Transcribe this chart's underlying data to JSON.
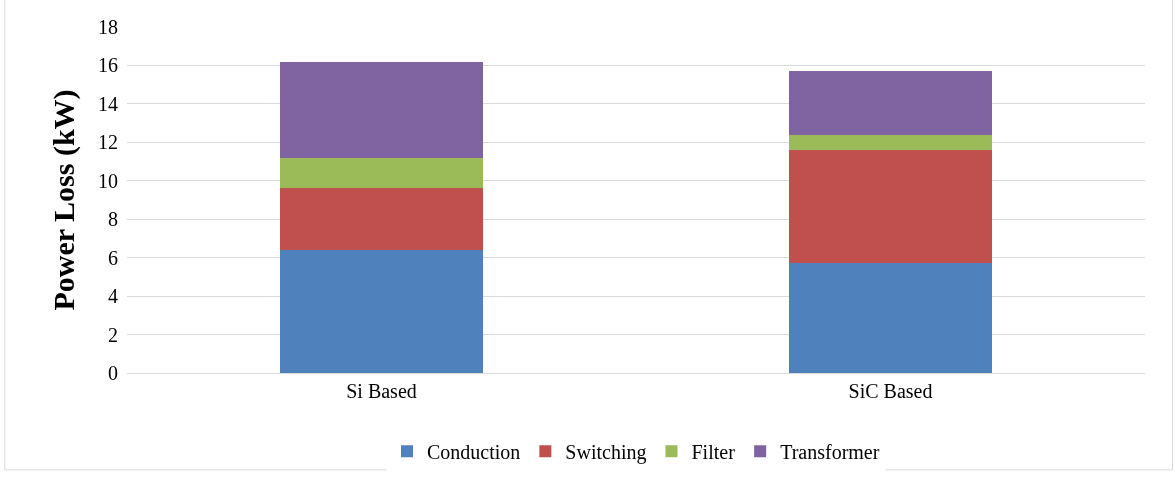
{
  "chart_data": {
    "type": "bar",
    "stacked": true,
    "ylabel": "Power Loss (kW)",
    "categories": [
      "Si Based",
      "SiC Based"
    ],
    "series": [
      {
        "name": "Conduction",
        "color": "#4f81bd",
        "values": [
          6.4,
          5.7
        ]
      },
      {
        "name": "Switching",
        "color": "#c0504d",
        "values": [
          3.2,
          5.9
        ]
      },
      {
        "name": "Filter",
        "color": "#9bbb59",
        "values": [
          1.6,
          0.8
        ]
      },
      {
        "name": "Transformer",
        "color": "#8064a2",
        "values": [
          5.0,
          3.3
        ]
      }
    ],
    "ylim": [
      0,
      18
    ],
    "yticks": [
      0,
      2,
      4,
      6,
      8,
      10,
      12,
      14,
      16,
      18
    ],
    "grid": "y",
    "legend": "bottom"
  }
}
